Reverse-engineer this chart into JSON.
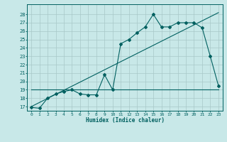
{
  "xlabel": "Humidex (Indice chaleur)",
  "background_color": "#c8e8e8",
  "grid_color": "#a8c8c8",
  "line_color": "#006060",
  "xlim": [
    -0.5,
    23.5
  ],
  "ylim": [
    16.5,
    29.2
  ],
  "xticks": [
    0,
    1,
    2,
    3,
    4,
    5,
    6,
    7,
    8,
    9,
    10,
    11,
    12,
    13,
    14,
    15,
    16,
    17,
    18,
    19,
    20,
    21,
    22,
    23
  ],
  "yticks": [
    17,
    18,
    19,
    20,
    21,
    22,
    23,
    24,
    25,
    26,
    27,
    28
  ],
  "series1_x": [
    0,
    1,
    2,
    3,
    4,
    5,
    6,
    7,
    8,
    9,
    10,
    11,
    12,
    13,
    14,
    15,
    16,
    17,
    18,
    19,
    20,
    21,
    22,
    23
  ],
  "series1_y": [
    16.9,
    16.8,
    18.0,
    18.5,
    18.8,
    19.0,
    18.5,
    18.4,
    18.4,
    20.8,
    19.0,
    24.5,
    25.0,
    25.8,
    26.5,
    28.0,
    26.5,
    26.5,
    27.0,
    27.0,
    27.0,
    26.4,
    23.0,
    19.5
  ],
  "series2_x": [
    0,
    23
  ],
  "series2_y": [
    17.0,
    28.2
  ],
  "series3_x": [
    0,
    23
  ],
  "series3_y": [
    19.0,
    19.0
  ],
  "fig_width": 3.2,
  "fig_height": 2.0,
  "dpi": 100
}
